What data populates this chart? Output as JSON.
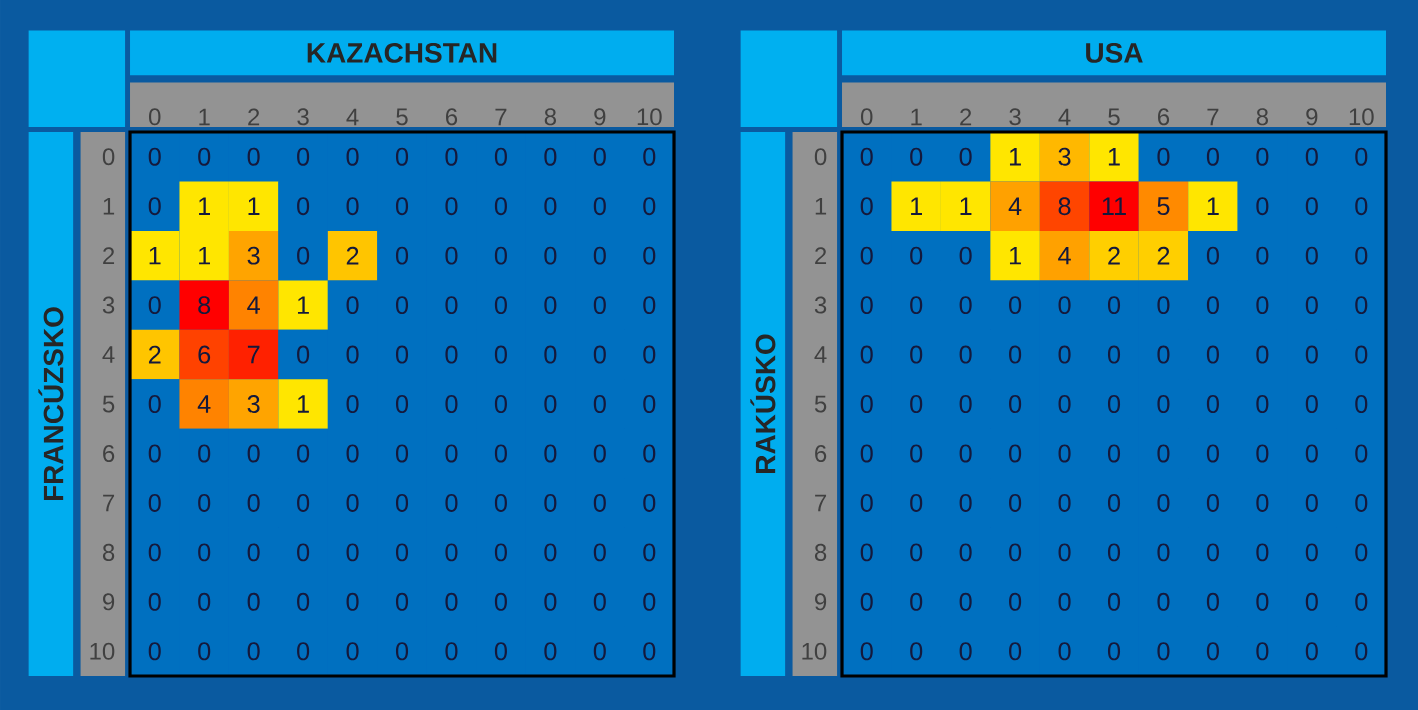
{
  "chart_data": [
    {
      "type": "heatmap",
      "title": "KAZACHSTAN",
      "ylabel": "FRANCÚZSKO",
      "data_labels": true,
      "categories": [
        "0",
        "1",
        "2",
        "3",
        "4",
        "5",
        "6",
        "7",
        "8",
        "9",
        "10"
      ],
      "y_categories": [
        "0",
        "1",
        "2",
        "3",
        "4",
        "5",
        "6",
        "7",
        "8",
        "9",
        "10"
      ],
      "cells": [
        [
          0,
          0,
          0,
          0,
          0,
          0,
          0,
          0,
          0,
          0,
          0
        ],
        [
          0,
          1,
          1,
          0,
          0,
          0,
          0,
          0,
          0,
          0,
          0
        ],
        [
          1,
          1,
          3,
          0,
          2,
          0,
          0,
          0,
          0,
          0,
          0
        ],
        [
          0,
          8,
          4,
          1,
          0,
          0,
          0,
          0,
          0,
          0,
          0
        ],
        [
          2,
          6,
          7,
          0,
          0,
          0,
          0,
          0,
          0,
          0,
          0
        ],
        [
          0,
          4,
          3,
          1,
          0,
          0,
          0,
          0,
          0,
          0,
          0
        ],
        [
          0,
          0,
          0,
          0,
          0,
          0,
          0,
          0,
          0,
          0,
          0
        ],
        [
          0,
          0,
          0,
          0,
          0,
          0,
          0,
          0,
          0,
          0,
          0
        ],
        [
          0,
          0,
          0,
          0,
          0,
          0,
          0,
          0,
          0,
          0,
          0
        ],
        [
          0,
          0,
          0,
          0,
          0,
          0,
          0,
          0,
          0,
          0,
          0
        ],
        [
          0,
          0,
          0,
          0,
          0,
          0,
          0,
          0,
          0,
          0,
          0
        ]
      ]
    },
    {
      "type": "heatmap",
      "title": "USA",
      "ylabel": "RAKÚSKO",
      "data_labels": true,
      "categories": [
        "0",
        "1",
        "2",
        "3",
        "4",
        "5",
        "6",
        "7",
        "8",
        "9",
        "10"
      ],
      "y_categories": [
        "0",
        "1",
        "2",
        "3",
        "4",
        "5",
        "6",
        "7",
        "8",
        "9",
        "10"
      ],
      "cells": [
        [
          0,
          0,
          0,
          1,
          3,
          1,
          0,
          0,
          0,
          0,
          0
        ],
        [
          0,
          1,
          1,
          4,
          8,
          11,
          5,
          1,
          0,
          0,
          0
        ],
        [
          0,
          0,
          0,
          1,
          4,
          2,
          2,
          0,
          0,
          0,
          0
        ],
        [
          0,
          0,
          0,
          0,
          0,
          0,
          0,
          0,
          0,
          0,
          0
        ],
        [
          0,
          0,
          0,
          0,
          0,
          0,
          0,
          0,
          0,
          0,
          0
        ],
        [
          0,
          0,
          0,
          0,
          0,
          0,
          0,
          0,
          0,
          0,
          0
        ],
        [
          0,
          0,
          0,
          0,
          0,
          0,
          0,
          0,
          0,
          0,
          0
        ],
        [
          0,
          0,
          0,
          0,
          0,
          0,
          0,
          0,
          0,
          0,
          0
        ],
        [
          0,
          0,
          0,
          0,
          0,
          0,
          0,
          0,
          0,
          0,
          0
        ],
        [
          0,
          0,
          0,
          0,
          0,
          0,
          0,
          0,
          0,
          0,
          0
        ],
        [
          0,
          0,
          0,
          0,
          0,
          0,
          0,
          0,
          0,
          0,
          0
        ]
      ]
    }
  ]
}
